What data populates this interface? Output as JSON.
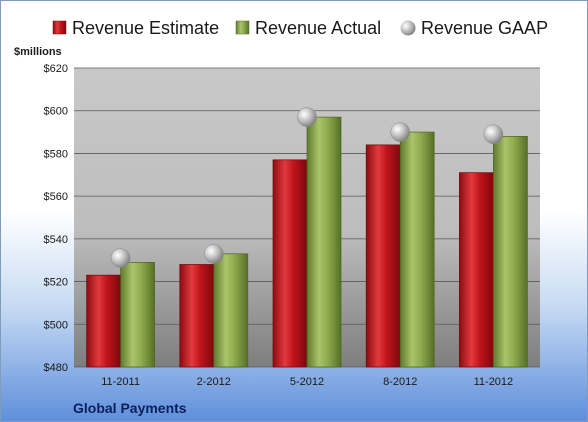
{
  "chart_data": {
    "type": "bar",
    "title": "",
    "company": "Global Payments",
    "ylabel": "$millions",
    "ylim": [
      480,
      620
    ],
    "yticks": [
      480,
      500,
      520,
      540,
      560,
      580,
      600,
      620
    ],
    "ytick_labels": [
      "$480",
      "$500",
      "$520",
      "$540",
      "$560",
      "$580",
      "$600",
      "$620"
    ],
    "categories": [
      "11-2011",
      "2-2012",
      "5-2012",
      "8-2012",
      "11-2012"
    ],
    "series": [
      {
        "name": "Revenue Estimate",
        "kind": "bar",
        "color": "#c0141b",
        "values": [
          523,
          528,
          577,
          584,
          571
        ]
      },
      {
        "name": "Revenue Actual",
        "kind": "bar",
        "color": "#8fac4f",
        "values": [
          529,
          533,
          597,
          590,
          588
        ]
      },
      {
        "name": "Revenue GAAP",
        "kind": "marker",
        "color": "#b0b0b0",
        "values": [
          531,
          533,
          597,
          590,
          589
        ]
      }
    ],
    "grid": true,
    "legend_position": "top"
  }
}
